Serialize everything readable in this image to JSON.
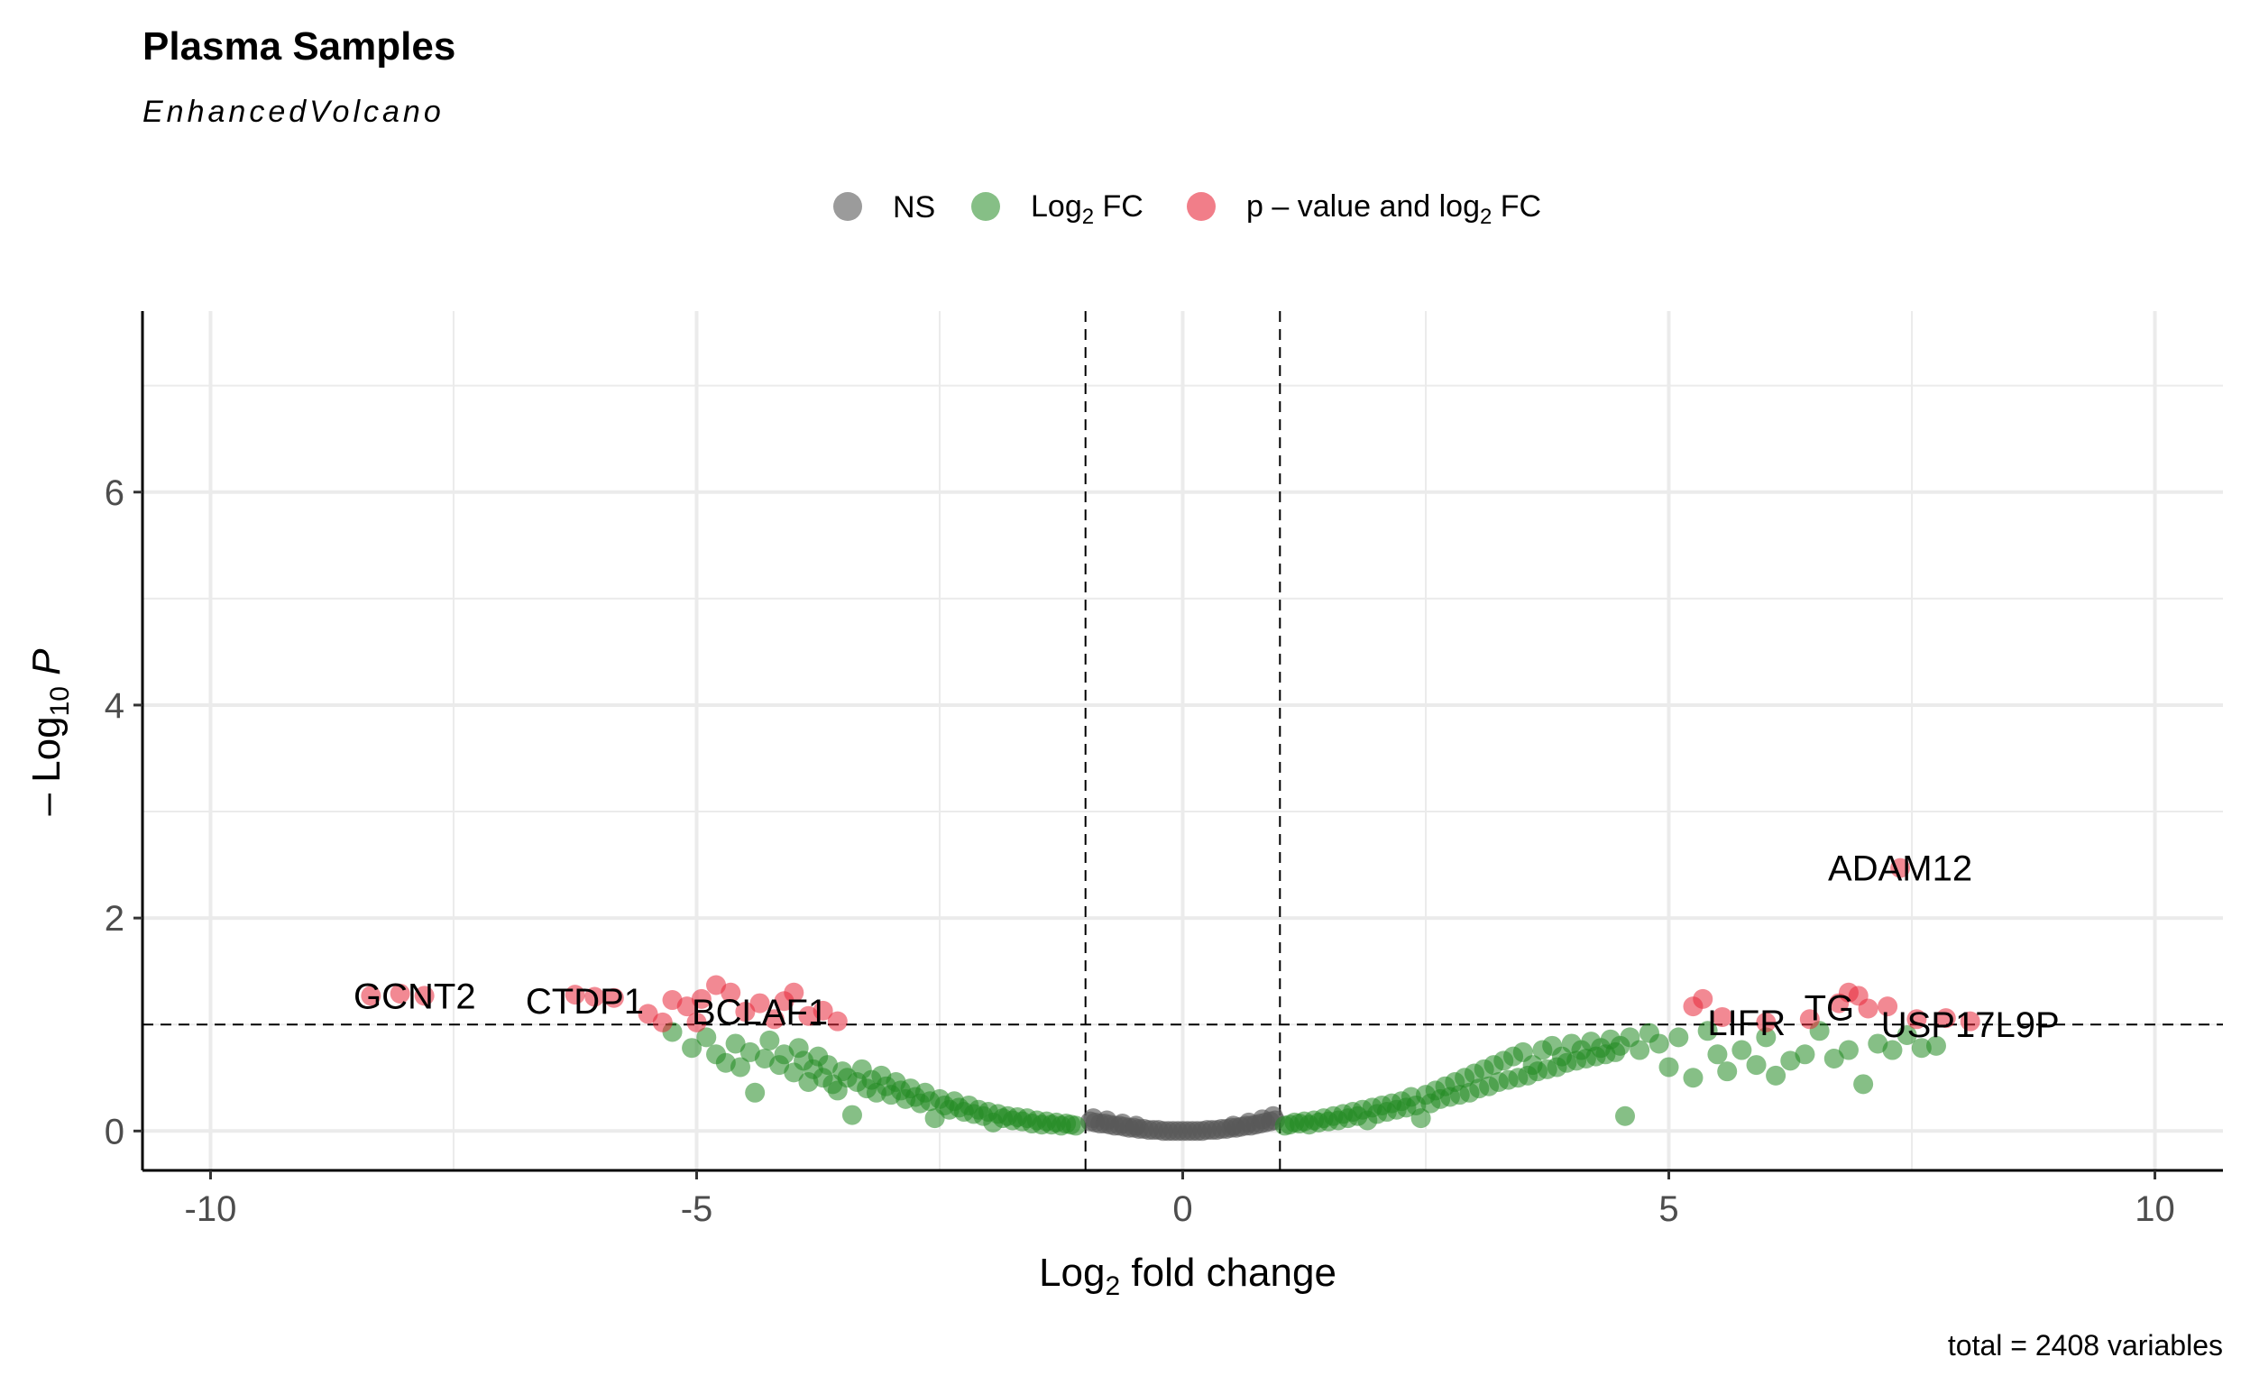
{
  "chart_data": {
    "type": "scatter",
    "title": "Plasma Samples",
    "subtitle": "EnhancedVolcano",
    "xlabel_main": "Log",
    "xlabel_sub": "2",
    "xlabel_rest": " fold change",
    "ylabel_prefix": "– Log",
    "ylabel_sub": "10",
    "ylabel_var": " P",
    "caption": "total = 2408 variables",
    "xlim": [
      -10.7,
      10.7
    ],
    "ylim": [
      -0.37,
      7.7
    ],
    "x_ticks": [
      -10,
      -5,
      0,
      5,
      10
    ],
    "x_tick_labels": [
      "-10",
      "-5",
      "0",
      "5",
      "10"
    ],
    "y_ticks": [
      0,
      2,
      4,
      6
    ],
    "y_tick_labels": [
      "0",
      "2",
      "4",
      "6"
    ],
    "grid": true,
    "cutoffs": {
      "x": [
        -1,
        1
      ],
      "y": 1
    },
    "legend": {
      "position": "top",
      "entries": [
        {
          "id": "ns",
          "text": "NS",
          "color": "#595959"
        },
        {
          "id": "fc",
          "text_main": "Log",
          "text_sub": "2",
          "text_rest": " FC",
          "color": "#228B22"
        },
        {
          "id": "both",
          "text_main": "p – value and log",
          "text_sub": "2",
          "text_rest": " FC",
          "color": "#E8283B"
        }
      ]
    },
    "colors": {
      "ns": "#595959",
      "fc": "#228B22",
      "both": "#E8283B"
    },
    "series": [
      {
        "name": "NS",
        "color": "#595959",
        "points": [
          [
            -0.95,
            0.09
          ],
          [
            -0.9,
            0.08
          ],
          [
            -0.85,
            0.07
          ],
          [
            -0.8,
            0.07
          ],
          [
            -0.75,
            0.06
          ],
          [
            -0.7,
            0.05
          ],
          [
            -0.65,
            0.05
          ],
          [
            -0.6,
            0.04
          ],
          [
            -0.55,
            0.03
          ],
          [
            -0.5,
            0.03
          ],
          [
            -0.45,
            0.02
          ],
          [
            -0.4,
            0.02
          ],
          [
            -0.35,
            0.01
          ],
          [
            -0.3,
            0.01
          ],
          [
            -0.25,
            0.01
          ],
          [
            -0.2,
            0.0
          ],
          [
            -0.15,
            0.0
          ],
          [
            -0.1,
            0.0
          ],
          [
            -0.05,
            0.0
          ],
          [
            0.0,
            0.0
          ],
          [
            0.05,
            0.0
          ],
          [
            0.1,
            0.0
          ],
          [
            0.15,
            0.0
          ],
          [
            0.2,
            0.0
          ],
          [
            0.25,
            0.01
          ],
          [
            0.3,
            0.01
          ],
          [
            0.35,
            0.01
          ],
          [
            0.4,
            0.02
          ],
          [
            0.45,
            0.02
          ],
          [
            0.5,
            0.03
          ],
          [
            0.55,
            0.03
          ],
          [
            0.6,
            0.04
          ],
          [
            0.65,
            0.05
          ],
          [
            0.7,
            0.05
          ],
          [
            0.75,
            0.06
          ],
          [
            0.8,
            0.07
          ],
          [
            0.85,
            0.08
          ],
          [
            0.9,
            0.09
          ],
          [
            0.95,
            0.1
          ],
          [
            -0.92,
            0.12
          ],
          [
            -0.78,
            0.1
          ],
          [
            -0.62,
            0.07
          ],
          [
            -0.48,
            0.05
          ],
          [
            0.52,
            0.05
          ],
          [
            0.68,
            0.08
          ],
          [
            0.82,
            0.11
          ],
          [
            0.93,
            0.14
          ]
        ]
      },
      {
        "name": "Log2 FC",
        "color": "#228B22",
        "points": [
          [
            -5.25,
            0.93
          ],
          [
            -5.05,
            0.78
          ],
          [
            -4.9,
            0.88
          ],
          [
            -4.8,
            0.72
          ],
          [
            -4.7,
            0.64
          ],
          [
            -4.6,
            0.82
          ],
          [
            -4.55,
            0.6
          ],
          [
            -4.45,
            0.74
          ],
          [
            -4.4,
            0.36
          ],
          [
            -4.3,
            0.68
          ],
          [
            -4.25,
            0.85
          ],
          [
            -4.15,
            0.62
          ],
          [
            -4.1,
            0.72
          ],
          [
            -4.0,
            0.55
          ],
          [
            -3.95,
            0.78
          ],
          [
            -3.9,
            0.66
          ],
          [
            -3.85,
            0.46
          ],
          [
            -3.8,
            0.58
          ],
          [
            -3.75,
            0.7
          ],
          [
            -3.7,
            0.5
          ],
          [
            -3.65,
            0.62
          ],
          [
            -3.6,
            0.44
          ],
          [
            -3.55,
            0.38
          ],
          [
            -3.5,
            0.56
          ],
          [
            -3.45,
            0.5
          ],
          [
            -3.4,
            0.15
          ],
          [
            -3.35,
            0.46
          ],
          [
            -3.3,
            0.58
          ],
          [
            -3.25,
            0.4
          ],
          [
            -3.2,
            0.48
          ],
          [
            -3.15,
            0.36
          ],
          [
            -3.1,
            0.52
          ],
          [
            -3.05,
            0.42
          ],
          [
            -3.0,
            0.34
          ],
          [
            -2.95,
            0.46
          ],
          [
            -2.9,
            0.38
          ],
          [
            -2.85,
            0.3
          ],
          [
            -2.8,
            0.4
          ],
          [
            -2.75,
            0.32
          ],
          [
            -2.7,
            0.26
          ],
          [
            -2.65,
            0.36
          ],
          [
            -2.6,
            0.28
          ],
          [
            -2.55,
            0.12
          ],
          [
            -2.5,
            0.3
          ],
          [
            -2.45,
            0.24
          ],
          [
            -2.4,
            0.2
          ],
          [
            -2.35,
            0.28
          ],
          [
            -2.3,
            0.22
          ],
          [
            -2.25,
            0.18
          ],
          [
            -2.2,
            0.24
          ],
          [
            -2.15,
            0.16
          ],
          [
            -2.1,
            0.2
          ],
          [
            -2.05,
            0.14
          ],
          [
            -2.0,
            0.18
          ],
          [
            -1.95,
            0.08
          ],
          [
            -1.9,
            0.16
          ],
          [
            -1.85,
            0.12
          ],
          [
            -1.8,
            0.14
          ],
          [
            -1.75,
            0.1
          ],
          [
            -1.7,
            0.13
          ],
          [
            -1.65,
            0.09
          ],
          [
            -1.6,
            0.12
          ],
          [
            -1.55,
            0.07
          ],
          [
            -1.5,
            0.1
          ],
          [
            -1.45,
            0.06
          ],
          [
            -1.4,
            0.09
          ],
          [
            -1.35,
            0.06
          ],
          [
            -1.3,
            0.08
          ],
          [
            -1.25,
            0.05
          ],
          [
            -1.2,
            0.07
          ],
          [
            -1.15,
            0.06
          ],
          [
            -1.1,
            0.05
          ],
          [
            1.05,
            0.05
          ],
          [
            1.1,
            0.06
          ],
          [
            1.15,
            0.08
          ],
          [
            1.2,
            0.07
          ],
          [
            1.25,
            0.09
          ],
          [
            1.3,
            0.06
          ],
          [
            1.35,
            0.1
          ],
          [
            1.4,
            0.08
          ],
          [
            1.45,
            0.12
          ],
          [
            1.5,
            0.09
          ],
          [
            1.55,
            0.14
          ],
          [
            1.6,
            0.1
          ],
          [
            1.65,
            0.16
          ],
          [
            1.7,
            0.12
          ],
          [
            1.75,
            0.18
          ],
          [
            1.8,
            0.14
          ],
          [
            1.85,
            0.2
          ],
          [
            1.9,
            0.1
          ],
          [
            1.95,
            0.22
          ],
          [
            2.0,
            0.16
          ],
          [
            2.05,
            0.24
          ],
          [
            2.1,
            0.18
          ],
          [
            2.15,
            0.26
          ],
          [
            2.2,
            0.2
          ],
          [
            2.25,
            0.28
          ],
          [
            2.3,
            0.22
          ],
          [
            2.35,
            0.32
          ],
          [
            2.4,
            0.24
          ],
          [
            2.45,
            0.12
          ],
          [
            2.5,
            0.34
          ],
          [
            2.55,
            0.26
          ],
          [
            2.6,
            0.38
          ],
          [
            2.65,
            0.3
          ],
          [
            2.7,
            0.42
          ],
          [
            2.75,
            0.32
          ],
          [
            2.8,
            0.46
          ],
          [
            2.85,
            0.34
          ],
          [
            2.9,
            0.5
          ],
          [
            2.95,
            0.36
          ],
          [
            3.0,
            0.54
          ],
          [
            3.05,
            0.4
          ],
          [
            3.1,
            0.58
          ],
          [
            3.15,
            0.42
          ],
          [
            3.2,
            0.62
          ],
          [
            3.25,
            0.46
          ],
          [
            3.3,
            0.66
          ],
          [
            3.35,
            0.48
          ],
          [
            3.4,
            0.7
          ],
          [
            3.45,
            0.5
          ],
          [
            3.5,
            0.74
          ],
          [
            3.55,
            0.52
          ],
          [
            3.6,
            0.62
          ],
          [
            3.65,
            0.56
          ],
          [
            3.7,
            0.76
          ],
          [
            3.75,
            0.58
          ],
          [
            3.8,
            0.8
          ],
          [
            3.85,
            0.6
          ],
          [
            3.9,
            0.7
          ],
          [
            3.95,
            0.64
          ],
          [
            4.0,
            0.82
          ],
          [
            4.05,
            0.66
          ],
          [
            4.1,
            0.76
          ],
          [
            4.15,
            0.68
          ],
          [
            4.2,
            0.84
          ],
          [
            4.25,
            0.7
          ],
          [
            4.3,
            0.78
          ],
          [
            4.35,
            0.72
          ],
          [
            4.4,
            0.86
          ],
          [
            4.45,
            0.74
          ],
          [
            4.5,
            0.8
          ],
          [
            4.6,
            0.88
          ],
          [
            4.7,
            0.76
          ],
          [
            4.8,
            0.92
          ],
          [
            4.9,
            0.82
          ],
          [
            5.0,
            0.6
          ],
          [
            5.1,
            0.88
          ],
          [
            5.25,
            0.5
          ],
          [
            5.4,
            0.94
          ],
          [
            5.5,
            0.72
          ],
          [
            5.6,
            0.56
          ],
          [
            5.75,
            0.76
          ],
          [
            5.9,
            0.62
          ],
          [
            6.0,
            0.88
          ],
          [
            6.1,
            0.52
          ],
          [
            6.25,
            0.66
          ],
          [
            6.4,
            0.72
          ],
          [
            6.55,
            0.94
          ],
          [
            6.7,
            0.68
          ],
          [
            6.85,
            0.76
          ],
          [
            7.0,
            0.44
          ],
          [
            7.15,
            0.82
          ],
          [
            7.3,
            0.76
          ],
          [
            7.45,
            0.9
          ],
          [
            7.6,
            0.78
          ],
          [
            7.75,
            0.8
          ],
          [
            4.55,
            0.14
          ]
        ]
      },
      {
        "name": "p-value and log2 FC",
        "color": "#E8283B",
        "points": [
          [
            -8.35,
            1.27
          ],
          [
            -8.05,
            1.29
          ],
          [
            -7.8,
            1.27
          ],
          [
            -6.25,
            1.28
          ],
          [
            -6.05,
            1.26
          ],
          [
            -5.85,
            1.25
          ],
          [
            -5.5,
            1.1
          ],
          [
            -5.35,
            1.02
          ],
          [
            -5.25,
            1.23
          ],
          [
            -5.1,
            1.17
          ],
          [
            -5.0,
            1.02
          ],
          [
            -4.95,
            1.24
          ],
          [
            -4.8,
            1.37
          ],
          [
            -4.65,
            1.3
          ],
          [
            -4.5,
            1.12
          ],
          [
            -4.35,
            1.2
          ],
          [
            -4.2,
            1.05
          ],
          [
            -4.1,
            1.22
          ],
          [
            -4.0,
            1.3
          ],
          [
            -3.85,
            1.08
          ],
          [
            -3.7,
            1.13
          ],
          [
            -3.55,
            1.03
          ],
          [
            5.25,
            1.17
          ],
          [
            5.35,
            1.24
          ],
          [
            5.55,
            1.07
          ],
          [
            6.0,
            1.02
          ],
          [
            6.45,
            1.05
          ],
          [
            6.75,
            1.2
          ],
          [
            6.85,
            1.3
          ],
          [
            6.95,
            1.27
          ],
          [
            7.05,
            1.15
          ],
          [
            7.25,
            1.17
          ],
          [
            7.38,
            2.47
          ],
          [
            7.55,
            1.05
          ],
          [
            7.85,
            1.06
          ],
          [
            8.1,
            1.03
          ]
        ]
      }
    ],
    "labels": [
      {
        "text": "GCNT2",
        "x": -7.9,
        "y": 1.27
      },
      {
        "text": "CTDP1",
        "x": -6.15,
        "y": 1.22
      },
      {
        "text": "BCLAF1",
        "x": -4.35,
        "y": 1.12
      },
      {
        "text": "ADAM12",
        "x": 7.38,
        "y": 2.47
      },
      {
        "text": "LIFR",
        "x": 5.8,
        "y": 1.02
      },
      {
        "text": "TG",
        "x": 6.65,
        "y": 1.16
      },
      {
        "text": "USP17L9P",
        "x": 8.1,
        "y": 1.0
      }
    ]
  }
}
